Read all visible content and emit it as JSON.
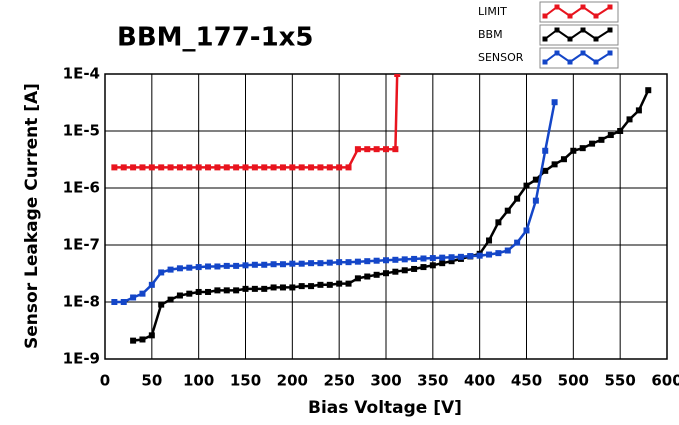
{
  "chart_data": {
    "type": "line",
    "title": "BBM_177-1x5",
    "x_label": "Bias Voltage [V]",
    "y_label": "Sensor Leakage Current [A]",
    "log_y": true,
    "grid": true,
    "legend": "top-right",
    "xlim": [
      0,
      600
    ],
    "xticks": [
      0,
      50,
      100,
      150,
      200,
      250,
      300,
      350,
      400,
      450,
      500,
      550,
      600
    ],
    "ylim": [
      1e-09,
      0.0001
    ],
    "yticks": [
      {
        "value": 1e-09,
        "label": "1E-9"
      },
      {
        "value": 1e-08,
        "label": "1E-8"
      },
      {
        "value": 1e-07,
        "label": "1E-7"
      },
      {
        "value": 1e-06,
        "label": "1E-6"
      },
      {
        "value": 1e-05,
        "label": "1E-5"
      },
      {
        "value": 0.0001,
        "label": "1E-4"
      }
    ],
    "series": [
      {
        "name": "LIMIT",
        "color": "#e8141e",
        "x": [
          10,
          20,
          30,
          40,
          50,
          60,
          70,
          80,
          90,
          100,
          110,
          120,
          130,
          140,
          150,
          160,
          170,
          180,
          190,
          200,
          210,
          220,
          230,
          240,
          250,
          260,
          270,
          280,
          290,
          300,
          310,
          312
        ],
        "values": [
          2.3e-06,
          2.3e-06,
          2.3e-06,
          2.3e-06,
          2.3e-06,
          2.3e-06,
          2.3e-06,
          2.3e-06,
          2.3e-06,
          2.3e-06,
          2.3e-06,
          2.3e-06,
          2.3e-06,
          2.3e-06,
          2.3e-06,
          2.3e-06,
          2.3e-06,
          2.3e-06,
          2.3e-06,
          2.3e-06,
          2.3e-06,
          2.3e-06,
          2.3e-06,
          2.3e-06,
          2.3e-06,
          2.3e-06,
          4.8e-06,
          4.8e-06,
          4.8e-06,
          4.8e-06,
          4.8e-06,
          0.0001
        ]
      },
      {
        "name": "BBM",
        "color": "#000000",
        "x": [
          30,
          40,
          50,
          60,
          70,
          80,
          90,
          100,
          110,
          120,
          130,
          140,
          150,
          160,
          170,
          180,
          190,
          200,
          210,
          220,
          230,
          240,
          250,
          260,
          270,
          280,
          290,
          300,
          310,
          320,
          330,
          340,
          350,
          360,
          370,
          380,
          390,
          400,
          410,
          420,
          430,
          440,
          450,
          460,
          470,
          480,
          490,
          500,
          510,
          520,
          530,
          540,
          550,
          560,
          570,
          580
        ],
        "values": [
          2.1e-09,
          2.2e-09,
          2.6e-09,
          9e-09,
          1.1e-08,
          1.3e-08,
          1.4e-08,
          1.5e-08,
          1.5e-08,
          1.6e-08,
          1.6e-08,
          1.6e-08,
          1.7e-08,
          1.7e-08,
          1.7e-08,
          1.8e-08,
          1.8e-08,
          1.8e-08,
          1.9e-08,
          1.9e-08,
          2e-08,
          2e-08,
          2.1e-08,
          2.1e-08,
          2.6e-08,
          2.8e-08,
          3e-08,
          3.2e-08,
          3.4e-08,
          3.6e-08,
          3.8e-08,
          4.1e-08,
          4.4e-08,
          4.8e-08,
          5.2e-08,
          5.7e-08,
          6.3e-08,
          7e-08,
          1.2e-07,
          2.5e-07,
          4e-07,
          6.5e-07,
          1.1e-06,
          1.4e-06,
          2e-06,
          2.6e-06,
          3.2e-06,
          4.5e-06,
          5e-06,
          6e-06,
          7e-06,
          8.5e-06,
          1e-05,
          1.6e-05,
          2.3e-05,
          5.2e-05
        ]
      },
      {
        "name": "SENSOR",
        "color": "#1446c8",
        "x": [
          10,
          20,
          30,
          40,
          50,
          60,
          70,
          80,
          90,
          100,
          110,
          120,
          130,
          140,
          150,
          160,
          170,
          180,
          190,
          200,
          210,
          220,
          230,
          240,
          250,
          260,
          270,
          280,
          290,
          300,
          310,
          320,
          330,
          340,
          350,
          360,
          370,
          380,
          390,
          400,
          410,
          420,
          430,
          440,
          450,
          460,
          470,
          480
        ],
        "values": [
          1e-08,
          1e-08,
          1.2e-08,
          1.4e-08,
          2e-08,
          3.3e-08,
          3.7e-08,
          3.9e-08,
          4e-08,
          4.1e-08,
          4.2e-08,
          4.2e-08,
          4.3e-08,
          4.3e-08,
          4.4e-08,
          4.5e-08,
          4.5e-08,
          4.6e-08,
          4.6e-08,
          4.7e-08,
          4.7e-08,
          4.8e-08,
          4.8e-08,
          4.9e-08,
          5e-08,
          5e-08,
          5.1e-08,
          5.2e-08,
          5.3e-08,
          5.4e-08,
          5.5e-08,
          5.6e-08,
          5.7e-08,
          5.8e-08,
          5.9e-08,
          6e-08,
          6.1e-08,
          6.2e-08,
          6.4e-08,
          6.5e-08,
          6.8e-08,
          7.2e-08,
          8e-08,
          1.1e-07,
          1.8e-07,
          6e-07,
          4.5e-06,
          3.2e-05
        ]
      }
    ]
  }
}
